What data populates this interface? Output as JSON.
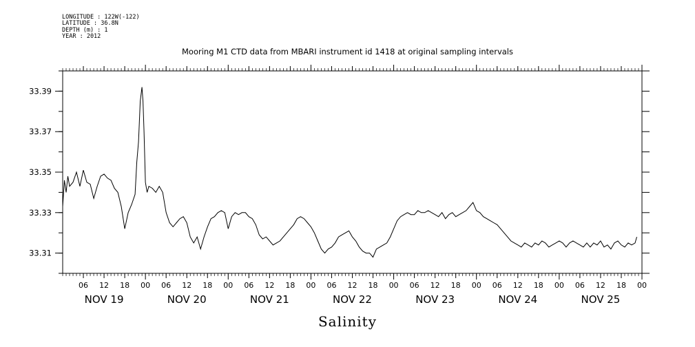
{
  "header": {
    "longitude": "LONGITUDE : 122W(-122)",
    "latitude": "LATITUDE : 36.8N",
    "depth": "DEPTH (m) : 1",
    "year": "YEAR : 2012"
  },
  "chart_data": {
    "type": "line",
    "title": "Mooring M1 CTD data from MBARI instrument id 1418 at original sampling intervals",
    "xlabel": "Salinity",
    "ylabel": "",
    "ylim": [
      33.3,
      33.4
    ],
    "yticks": [
      33.31,
      33.33,
      33.35,
      33.37,
      33.39
    ],
    "ytick_labels": [
      "33.31",
      "33.33",
      "33.35",
      "33.37",
      "33.39"
    ],
    "x_unit": "hours since Nov 19 00:00, 2012",
    "xlim": [
      0,
      168
    ],
    "hour_ticks": [
      "06",
      "12",
      "18",
      "00",
      "06",
      "12",
      "18",
      "00",
      "06",
      "12",
      "18",
      "00",
      "06",
      "12",
      "18",
      "00",
      "06",
      "12",
      "18",
      "00",
      "06",
      "12",
      "18",
      "00",
      "06",
      "12",
      "18",
      "00"
    ],
    "day_labels": [
      "NOV 19",
      "NOV 20",
      "NOV 21",
      "NOV 22",
      "NOV 23",
      "NOV 24",
      "NOV 25"
    ],
    "grid": false,
    "series": [
      {
        "values": [
          [
            0,
            33.333
          ],
          [
            0.5,
            33.346
          ],
          [
            1,
            33.34
          ],
          [
            1.5,
            33.348
          ],
          [
            2,
            33.343
          ],
          [
            3,
            33.345
          ],
          [
            4,
            33.35
          ],
          [
            5,
            33.343
          ],
          [
            6,
            33.351
          ],
          [
            7,
            33.345
          ],
          [
            8,
            33.344
          ],
          [
            9,
            33.337
          ],
          [
            10,
            33.343
          ],
          [
            11,
            33.348
          ],
          [
            12,
            33.349
          ],
          [
            13,
            33.347
          ],
          [
            14,
            33.346
          ],
          [
            15,
            33.342
          ],
          [
            16,
            33.34
          ],
          [
            17,
            33.333
          ],
          [
            18,
            33.322
          ],
          [
            19,
            33.33
          ],
          [
            20,
            33.334
          ],
          [
            21,
            33.339
          ],
          [
            21.5,
            33.355
          ],
          [
            22,
            33.365
          ],
          [
            22.5,
            33.385
          ],
          [
            23,
            33.392
          ],
          [
            23.3,
            33.385
          ],
          [
            23.6,
            33.37
          ],
          [
            24,
            33.345
          ],
          [
            24.5,
            33.34
          ],
          [
            25,
            33.343
          ],
          [
            26,
            33.342
          ],
          [
            27,
            33.34
          ],
          [
            28,
            33.343
          ],
          [
            29,
            33.34
          ],
          [
            30,
            33.33
          ],
          [
            31,
            33.325
          ],
          [
            32,
            33.323
          ],
          [
            33,
            33.325
          ],
          [
            34,
            33.327
          ],
          [
            35,
            33.328
          ],
          [
            36,
            33.325
          ],
          [
            37,
            33.318
          ],
          [
            38,
            33.315
          ],
          [
            39,
            33.318
          ],
          [
            40,
            33.312
          ],
          [
            41,
            33.318
          ],
          [
            42,
            33.323
          ],
          [
            43,
            33.327
          ],
          [
            44,
            33.328
          ],
          [
            45,
            33.33
          ],
          [
            46,
            33.331
          ],
          [
            47,
            33.33
          ],
          [
            48,
            33.322
          ],
          [
            49,
            33.328
          ],
          [
            50,
            33.33
          ],
          [
            51,
            33.329
          ],
          [
            52,
            33.33
          ],
          [
            53,
            33.33
          ],
          [
            54,
            33.328
          ],
          [
            55,
            33.327
          ],
          [
            56,
            33.324
          ],
          [
            57,
            33.319
          ],
          [
            58,
            33.317
          ],
          [
            59,
            33.318
          ],
          [
            60,
            33.316
          ],
          [
            61,
            33.314
          ],
          [
            62,
            33.315
          ],
          [
            63,
            33.316
          ],
          [
            64,
            33.318
          ],
          [
            65,
            33.32
          ],
          [
            66,
            33.322
          ],
          [
            67,
            33.324
          ],
          [
            68,
            33.327
          ],
          [
            69,
            33.328
          ],
          [
            70,
            33.327
          ],
          [
            71,
            33.325
          ],
          [
            72,
            33.323
          ],
          [
            73,
            33.32
          ],
          [
            74,
            33.316
          ],
          [
            75,
            33.312
          ],
          [
            76,
            33.31
          ],
          [
            77,
            33.312
          ],
          [
            78,
            33.313
          ],
          [
            79,
            33.315
          ],
          [
            80,
            33.318
          ],
          [
            81,
            33.319
          ],
          [
            82,
            33.32
          ],
          [
            83,
            33.321
          ],
          [
            84,
            33.318
          ],
          [
            85,
            33.316
          ],
          [
            86,
            33.313
          ],
          [
            87,
            33.311
          ],
          [
            88,
            33.31
          ],
          [
            89,
            33.31
          ],
          [
            90,
            33.308
          ],
          [
            91,
            33.312
          ],
          [
            92,
            33.313
          ],
          [
            93,
            33.314
          ],
          [
            94,
            33.315
          ],
          [
            95,
            33.318
          ],
          [
            96,
            33.322
          ],
          [
            97,
            33.326
          ],
          [
            98,
            33.328
          ],
          [
            99,
            33.329
          ],
          [
            100,
            33.33
          ],
          [
            101,
            33.329
          ],
          [
            102,
            33.329
          ],
          [
            103,
            33.331
          ],
          [
            104,
            33.33
          ],
          [
            105,
            33.33
          ],
          [
            106,
            33.331
          ],
          [
            107,
            33.33
          ],
          [
            108,
            33.329
          ],
          [
            109,
            33.328
          ],
          [
            110,
            33.33
          ],
          [
            111,
            33.327
          ],
          [
            112,
            33.329
          ],
          [
            113,
            33.33
          ],
          [
            114,
            33.328
          ],
          [
            115,
            33.329
          ],
          [
            116,
            33.33
          ],
          [
            117,
            33.331
          ],
          [
            118,
            33.333
          ],
          [
            119,
            33.335
          ],
          [
            120,
            33.331
          ],
          [
            121,
            33.33
          ],
          [
            122,
            33.328
          ],
          [
            123,
            33.327
          ],
          [
            124,
            33.326
          ],
          [
            125,
            33.325
          ],
          [
            126,
            33.324
          ],
          [
            127,
            33.322
          ],
          [
            128,
            33.32
          ],
          [
            129,
            33.318
          ],
          [
            130,
            33.316
          ],
          [
            131,
            33.315
          ],
          [
            132,
            33.314
          ],
          [
            133,
            33.313
          ],
          [
            134,
            33.315
          ],
          [
            135,
            33.314
          ],
          [
            136,
            33.313
          ],
          [
            137,
            33.315
          ],
          [
            138,
            33.314
          ],
          [
            139,
            33.316
          ],
          [
            140,
            33.315
          ],
          [
            141,
            33.313
          ],
          [
            142,
            33.314
          ],
          [
            143,
            33.315
          ],
          [
            144,
            33.316
          ],
          [
            145,
            33.315
          ],
          [
            146,
            33.313
          ],
          [
            147,
            33.315
          ],
          [
            148,
            33.316
          ],
          [
            149,
            33.315
          ],
          [
            150,
            33.314
          ],
          [
            151,
            33.313
          ],
          [
            152,
            33.315
          ],
          [
            153,
            33.313
          ],
          [
            154,
            33.315
          ],
          [
            155,
            33.314
          ],
          [
            156,
            33.316
          ],
          [
            157,
            33.313
          ],
          [
            158,
            33.314
          ],
          [
            159,
            33.312
          ],
          [
            160,
            33.315
          ],
          [
            161,
            33.316
          ],
          [
            162,
            33.314
          ],
          [
            163,
            33.313
          ],
          [
            164,
            33.315
          ],
          [
            165,
            33.314
          ],
          [
            166,
            33.315
          ],
          [
            166.5,
            33.318
          ]
        ]
      }
    ]
  }
}
